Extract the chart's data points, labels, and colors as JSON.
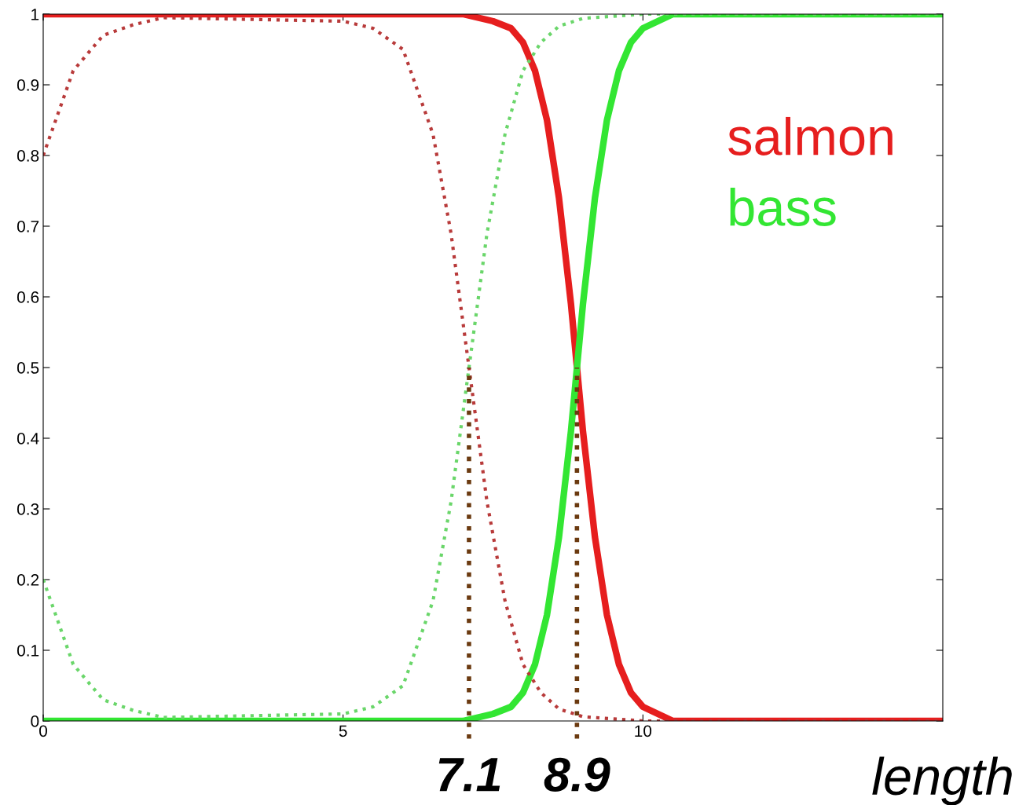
{
  "chart_data": {
    "type": "line",
    "xlabel": "length",
    "xlim": [
      0,
      15
    ],
    "xticks": [
      0,
      5,
      10
    ],
    "ylim": [
      0,
      1
    ],
    "yticks": [
      0,
      0.1,
      0.2,
      0.3,
      0.4,
      0.5,
      0.6,
      0.7,
      0.8,
      0.9,
      1
    ],
    "grid": false,
    "legend": false,
    "marker": "none",
    "series": [
      {
        "name": "salmon",
        "color": "#e61e1e",
        "line_style": "solid",
        "x": [
          0,
          7,
          7.5,
          7.8,
          8.0,
          8.2,
          8.4,
          8.6,
          8.8,
          8.9,
          9.0,
          9.2,
          9.4,
          9.6,
          9.8,
          10.0,
          10.5,
          15
        ],
        "values": [
          1,
          1,
          0.99,
          0.98,
          0.96,
          0.92,
          0.85,
          0.74,
          0.59,
          0.5,
          0.41,
          0.26,
          0.15,
          0.08,
          0.04,
          0.02,
          0,
          0
        ]
      },
      {
        "name": "bass",
        "color": "#33e633",
        "line_style": "solid",
        "x": [
          0,
          7,
          7.5,
          7.8,
          8.0,
          8.2,
          8.4,
          8.6,
          8.8,
          8.9,
          9.0,
          9.2,
          9.4,
          9.6,
          9.8,
          10.0,
          10.5,
          15
        ],
        "values": [
          0,
          0,
          0.01,
          0.02,
          0.04,
          0.08,
          0.15,
          0.26,
          0.41,
          0.5,
          0.59,
          0.74,
          0.85,
          0.92,
          0.96,
          0.98,
          1,
          1
        ]
      },
      {
        "color": "#b83a3a",
        "line_style": "dotted",
        "x": [
          0,
          0.25,
          0.5,
          1,
          1.5,
          2,
          5,
          5.5,
          6,
          6.5,
          6.8,
          7.1,
          7.4,
          7.7,
          8.0,
          8.3,
          8.6,
          9,
          10,
          15
        ],
        "values": [
          0.8,
          0.86,
          0.92,
          0.97,
          0.985,
          0.995,
          0.99,
          0.98,
          0.95,
          0.83,
          0.69,
          0.5,
          0.31,
          0.17,
          0.08,
          0.04,
          0.017,
          0.006,
          0,
          0
        ]
      },
      {
        "color": "#6ad66a",
        "line_style": "dotted",
        "x": [
          0,
          0.25,
          0.5,
          1,
          1.5,
          2,
          5,
          5.5,
          6,
          6.5,
          6.8,
          7.1,
          7.4,
          7.7,
          8.0,
          8.3,
          8.6,
          9,
          10,
          15
        ],
        "values": [
          0.2,
          0.14,
          0.08,
          0.03,
          0.015,
          0.005,
          0.01,
          0.02,
          0.05,
          0.17,
          0.31,
          0.5,
          0.69,
          0.83,
          0.92,
          0.96,
          0.983,
          0.994,
          1,
          1
        ]
      }
    ],
    "ref_lines": [
      {
        "axis": "x",
        "value": 7.1,
        "label": "7.1",
        "color": "#6b3a10",
        "line_style": "dotted"
      },
      {
        "axis": "x",
        "value": 8.9,
        "label": "8.9",
        "color": "#6b3a10",
        "line_style": "dotted"
      }
    ]
  }
}
